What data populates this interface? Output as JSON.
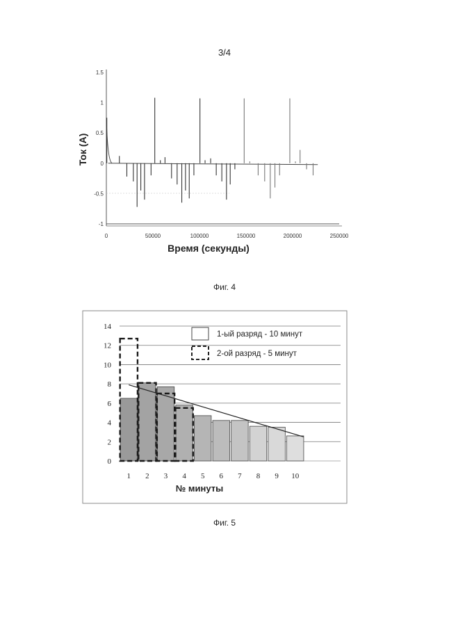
{
  "page": {
    "number": "3/4"
  },
  "figure4": {
    "caption": "Фиг. 4",
    "chart_data": {
      "type": "line",
      "title": "",
      "xlabel": "Время (секунды)",
      "ylabel": "Ток (А)",
      "xlim": [
        0,
        250000
      ],
      "ylim": [
        -1,
        1.5
      ],
      "x_ticks": [
        "0",
        "50000",
        "100000",
        "150000",
        "200000",
        "250000"
      ],
      "y_ticks": [
        "1.5",
        "1",
        "0.5",
        "0",
        "-0.5",
        "-1"
      ],
      "grid": false,
      "baseline": 0,
      "spikes": [
        {
          "x": 500,
          "y": 0.75
        },
        {
          "x": 14000,
          "y": 0.12
        },
        {
          "x": 22000,
          "y": -0.22
        },
        {
          "x": 29000,
          "y": -0.3
        },
        {
          "x": 33000,
          "y": -0.72
        },
        {
          "x": 37000,
          "y": -0.45
        },
        {
          "x": 41000,
          "y": -0.6
        },
        {
          "x": 48000,
          "y": -0.2
        },
        {
          "x": 52000,
          "y": 1.08
        },
        {
          "x": 58000,
          "y": 0.05
        },
        {
          "x": 63000,
          "y": 0.1
        },
        {
          "x": 70000,
          "y": -0.25
        },
        {
          "x": 76000,
          "y": -0.35
        },
        {
          "x": 81000,
          "y": -0.65
        },
        {
          "x": 85000,
          "y": -0.45
        },
        {
          "x": 89000,
          "y": -0.58
        },
        {
          "x": 94000,
          "y": -0.2
        },
        {
          "x": 100500,
          "y": 1.07
        },
        {
          "x": 106000,
          "y": 0.05
        },
        {
          "x": 112000,
          "y": 0.08
        },
        {
          "x": 118000,
          "y": -0.2
        },
        {
          "x": 124000,
          "y": -0.3
        },
        {
          "x": 129000,
          "y": -0.6
        },
        {
          "x": 133000,
          "y": -0.35
        },
        {
          "x": 138000,
          "y": -0.1
        },
        {
          "x": 148000,
          "y": 1.07
        },
        {
          "x": 154000,
          "y": 0.03
        },
        {
          "x": 163000,
          "y": -0.2
        },
        {
          "x": 170000,
          "y": -0.3
        },
        {
          "x": 176000,
          "y": -0.58
        },
        {
          "x": 181000,
          "y": -0.4
        },
        {
          "x": 186000,
          "y": -0.2
        },
        {
          "x": 197000,
          "y": 1.07
        },
        {
          "x": 203000,
          "y": 0.03
        },
        {
          "x": 208000,
          "y": 0.22
        },
        {
          "x": 215000,
          "y": -0.1
        },
        {
          "x": 222000,
          "y": -0.2
        }
      ]
    }
  },
  "figure5": {
    "caption": "Фиг. 5",
    "chart_data": {
      "type": "bar",
      "title": "",
      "xlabel": "№ минуты",
      "ylabel": "",
      "categories": [
        "1",
        "2",
        "3",
        "4",
        "5",
        "6",
        "7",
        "8",
        "9",
        "10"
      ],
      "ylim": [
        0,
        14
      ],
      "y_ticks": [
        "14",
        "12",
        "10",
        "8",
        "6",
        "4",
        "2",
        "0"
      ],
      "grid": true,
      "legend_position": "top-right",
      "series": [
        {
          "name": "1-ый разряд - 10 минут",
          "style": "solid",
          "values": [
            6.5,
            8.1,
            7.7,
            5.8,
            4.7,
            4.2,
            4.2,
            3.6,
            3.5,
            2.6
          ]
        },
        {
          "name": "2-ой разряд - 5 минут",
          "style": "dashed",
          "values": [
            12.7,
            8.1,
            7.0,
            5.5,
            null,
            null,
            null,
            null,
            null,
            null
          ]
        }
      ],
      "trendline": {
        "from": [
          1,
          7.9
        ],
        "to": [
          10,
          2.5
        ]
      }
    }
  }
}
